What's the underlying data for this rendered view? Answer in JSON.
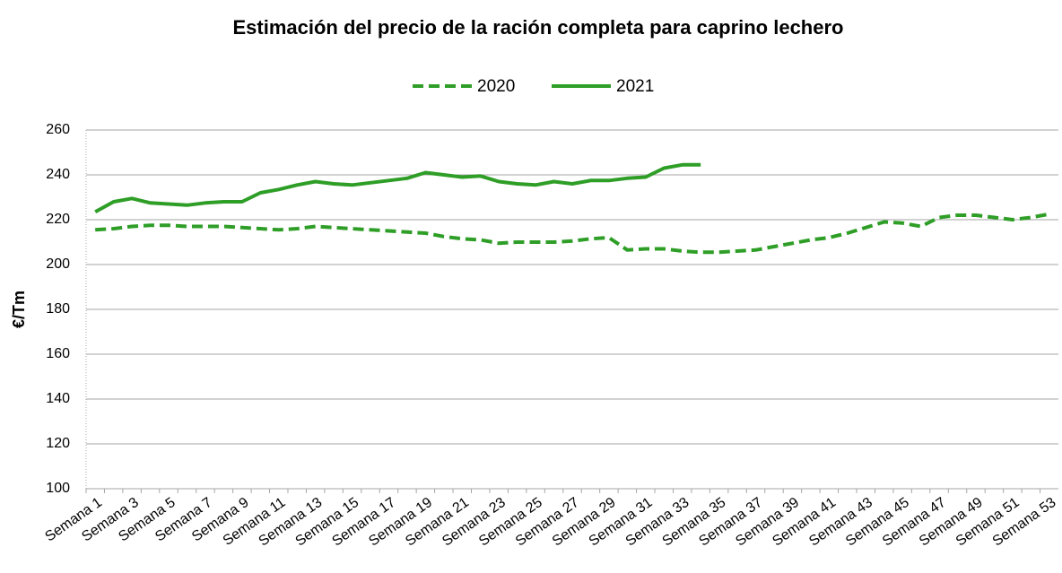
{
  "chart_data": {
    "type": "line",
    "title": "Estimación del precio de la ración completa para caprino lechero",
    "y_label": "€/Tm",
    "categories": [
      "Semana 1",
      null,
      "Semana 3",
      null,
      "Semana 5",
      null,
      "Semana 7",
      null,
      "Semana 9",
      null,
      "Semana 11",
      null,
      "Semana 13",
      null,
      "Semana 15",
      null,
      "Semana 17",
      null,
      "Semana 19",
      null,
      "Semana 21",
      null,
      "Semana 23",
      null,
      "Semana 25",
      null,
      "Semana 27",
      null,
      "Semana 29",
      null,
      "Semana 31",
      null,
      "Semana 33",
      null,
      "Semana 35",
      null,
      "Semana 37",
      null,
      "Semana 39",
      null,
      "Semana 41",
      null,
      "Semana 43",
      null,
      "Semana 45",
      null,
      "Semana 47",
      null,
      "Semana 49",
      null,
      "Semana 51",
      null,
      "Semana 53"
    ],
    "series": [
      {
        "name": "2020",
        "color": "#2e9e27",
        "dashed": true,
        "values": [
          215.5,
          216,
          217,
          217.5,
          217.5,
          217,
          217,
          217,
          216.5,
          216,
          215.5,
          216,
          217,
          216.5,
          216,
          215.5,
          215,
          214.5,
          214,
          212.5,
          211.5,
          211,
          209.5,
          210,
          210,
          210,
          210.5,
          211.5,
          212,
          206.5,
          207,
          207,
          206,
          205.5,
          205.5,
          206,
          206.5,
          208,
          209.5,
          211,
          212,
          214,
          216.5,
          219,
          218.5,
          217,
          221,
          222,
          222,
          221,
          220,
          221,
          222.5
        ]
      },
      {
        "name": "2021",
        "color": "#2e9e27",
        "dashed": false,
        "values": [
          223.5,
          228,
          229.5,
          227.5,
          227,
          226.5,
          227.5,
          228,
          228,
          232,
          233.5,
          235.5,
          237,
          236,
          235.5,
          236.5,
          237.5,
          238.5,
          241,
          240,
          239,
          239.5,
          237,
          236,
          235.5,
          237,
          236,
          237.5,
          237.5,
          238.5,
          239,
          243,
          244.5,
          244.5,
          null,
          null,
          null,
          null,
          null,
          null,
          null,
          null,
          null,
          null,
          null,
          null,
          null,
          null,
          null,
          null,
          null,
          null,
          null
        ]
      }
    ],
    "ylim": [
      100,
      260
    ],
    "yticks": [
      100,
      120,
      140,
      160,
      180,
      200,
      220,
      240,
      260
    ],
    "grid": true
  }
}
